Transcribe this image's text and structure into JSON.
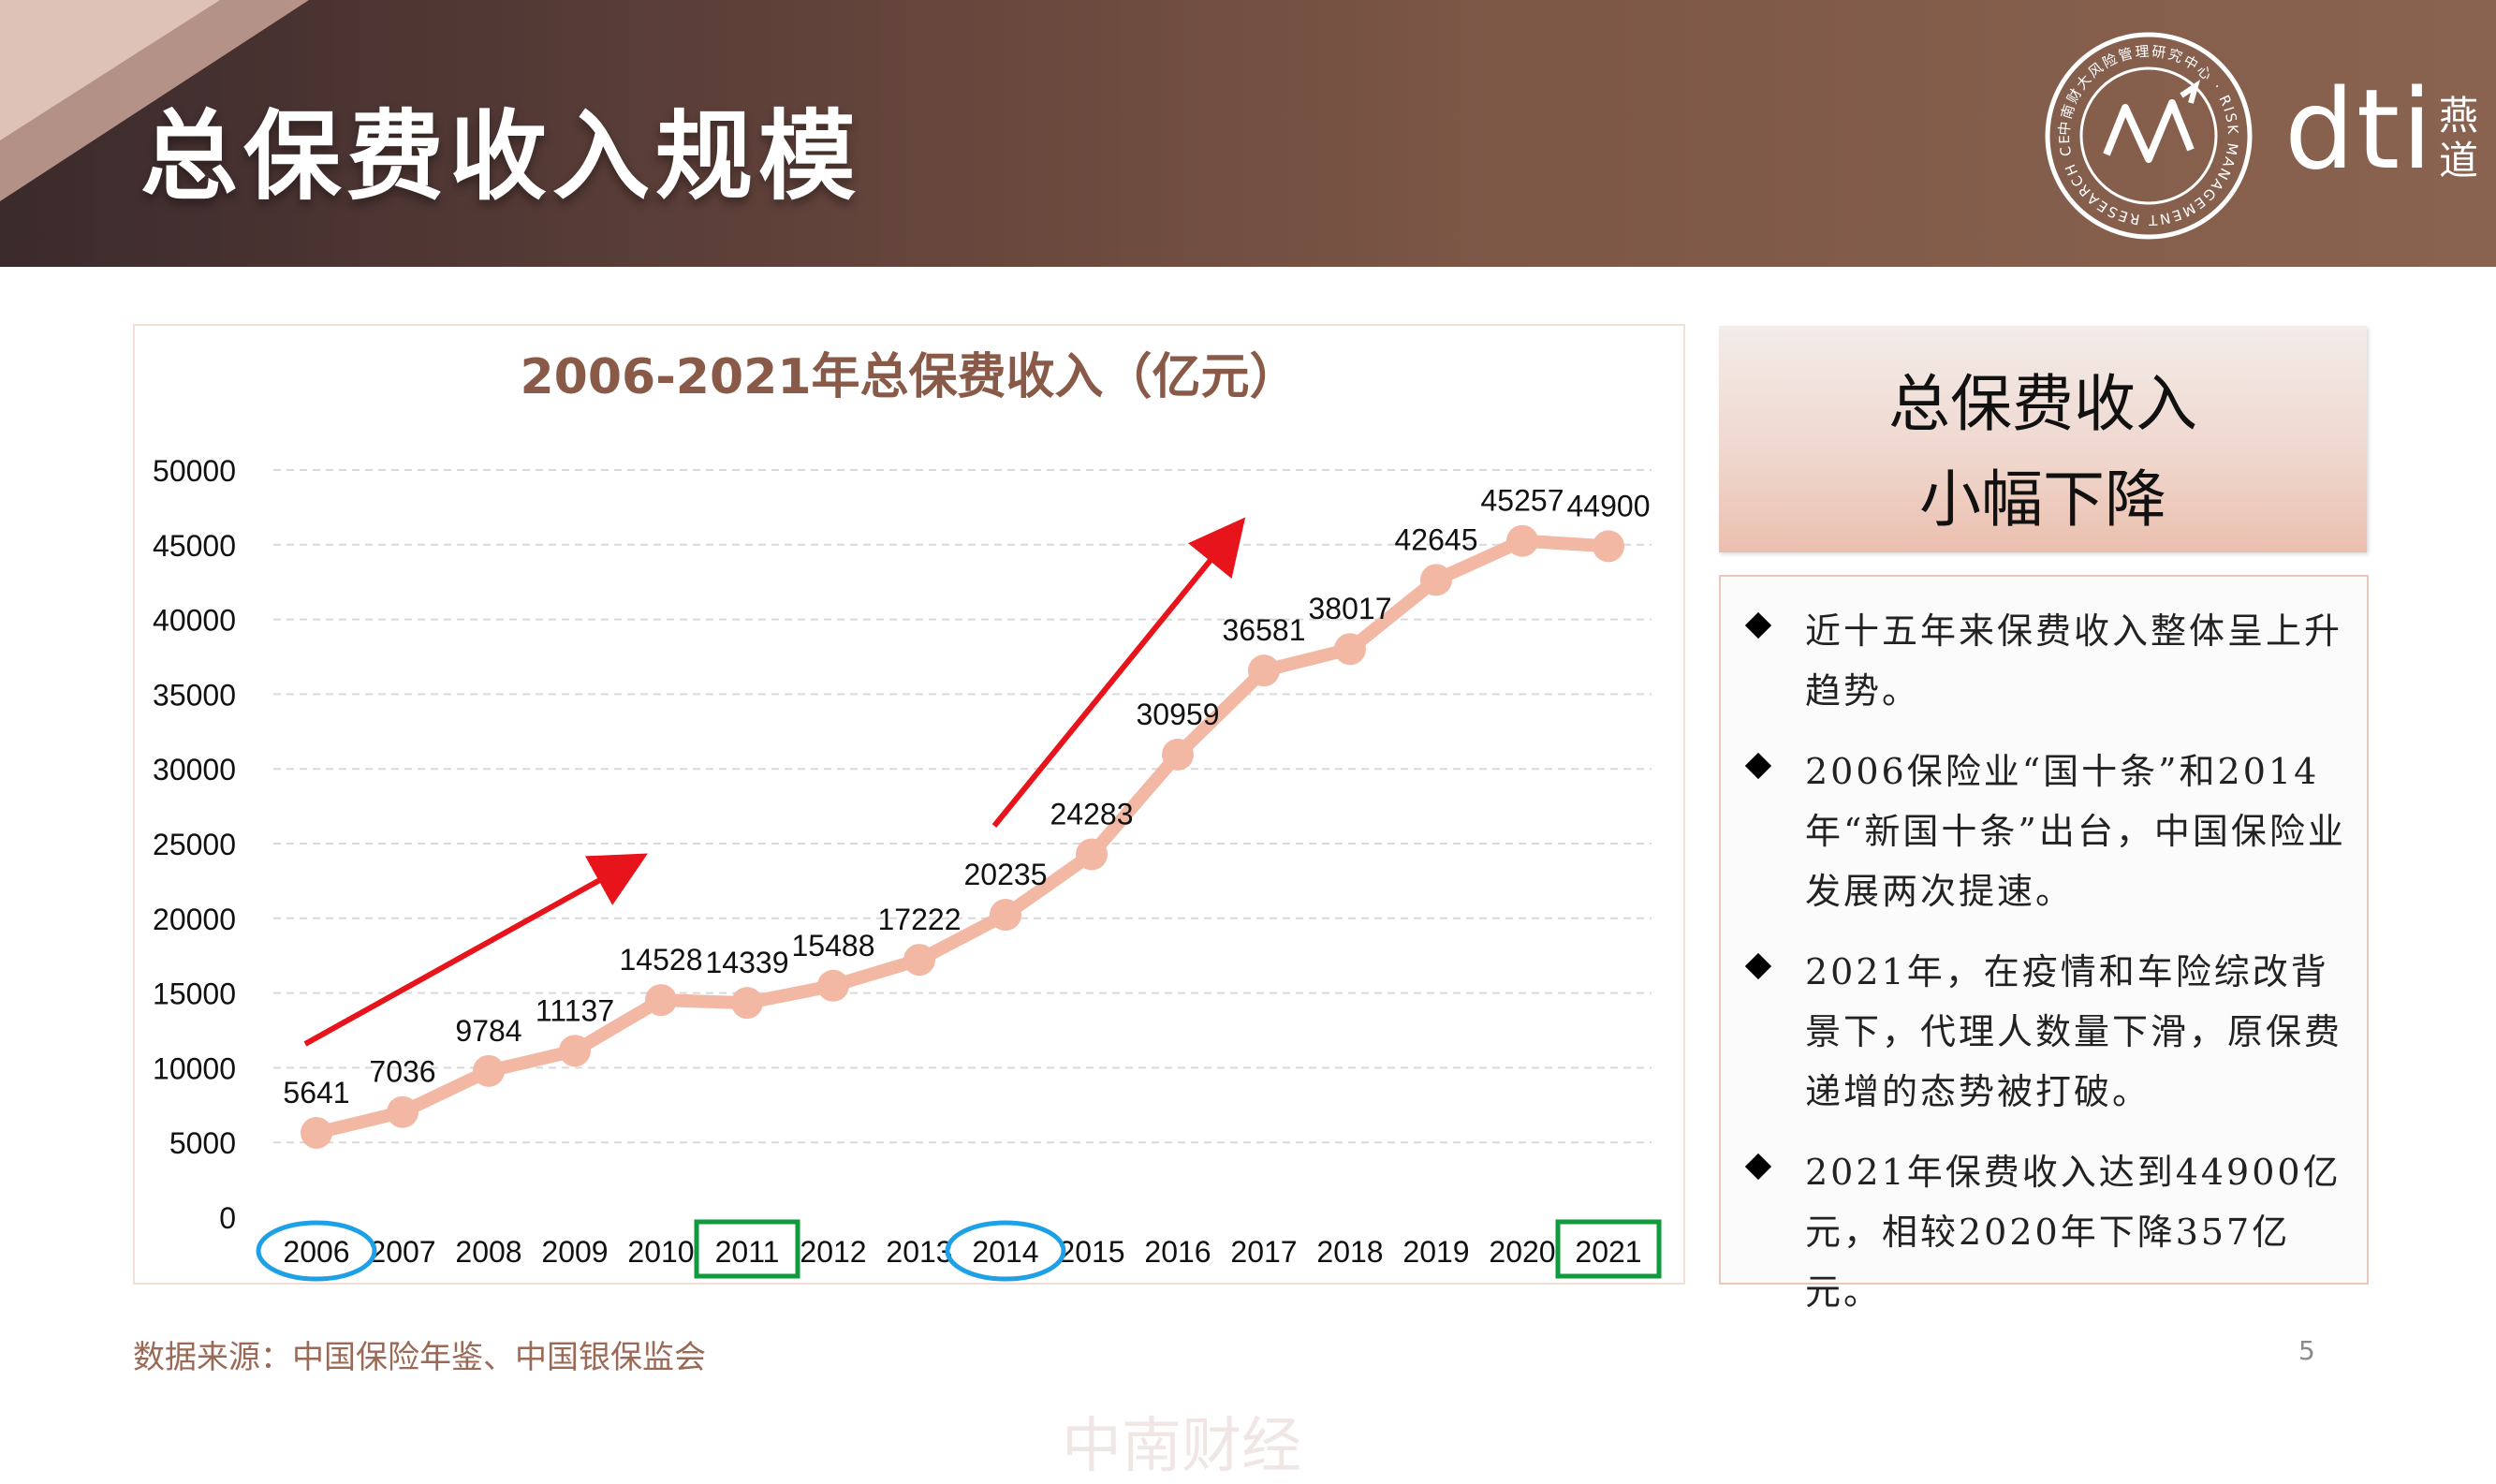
{
  "header": {
    "title": "总保费收入规模",
    "brand_name": "dti",
    "brand_cn": "燕道",
    "seal_text_cn": "中南财大风险管理研究中心",
    "seal_text_en": "RISK MANAGEMENT RESEARCH CENTER OF ZUEL"
  },
  "colors": {
    "line": "#f2b8a4",
    "title": "#8a5a49",
    "arrow": "#e8141b",
    "circle": "#1ea0e6",
    "box": "#0f9a3c"
  },
  "chart_data": {
    "type": "line",
    "title": "2006-2021年总保费收入（亿元）",
    "categories": [
      "2006",
      "2007",
      "2008",
      "2009",
      "2010",
      "2011",
      "2012",
      "2013",
      "2014",
      "2015",
      "2016",
      "2017",
      "2018",
      "2019",
      "2020",
      "2021"
    ],
    "series": [
      {
        "values": [
          5641,
          7036,
          9784,
          11137,
          14528,
          14339,
          15488,
          17222,
          20235,
          24283,
          30959,
          36581,
          38017,
          42645,
          45257,
          44900
        ]
      }
    ],
    "y_ticks": [
      "0",
      "5000",
      "10000",
      "15000",
      "20000",
      "25000",
      "30000",
      "35000",
      "40000",
      "45000",
      "50000"
    ],
    "ylim": [
      0,
      50000
    ],
    "grid": true,
    "annotations": {
      "circled_years": [
        "2006",
        "2014"
      ],
      "boxed_years": [
        "2011",
        "2021"
      ],
      "trend_arrows": [
        {
          "from_year": "2006",
          "to_year": "2010"
        },
        {
          "from_year": "2014",
          "to_year": "2017"
        }
      ]
    }
  },
  "watermark": "中南财经",
  "summary": {
    "line1": "总保费收入",
    "line2": "小幅下降"
  },
  "points": [
    "近十五年来保费收入整体呈上升趋势。",
    "2006保险业“国十条”和2014年“新国十条”出台，中国保险业发展两次提速。",
    "2021年，在疫情和车险综改背景下，代理人数量下滑，原保费递增的态势被打破。",
    "2021年保费收入达到44900亿元，相较2020年下降357亿元。"
  ],
  "footer": {
    "source": "数据来源：中国保险年鉴、中国银保监会",
    "page_number": "5"
  }
}
